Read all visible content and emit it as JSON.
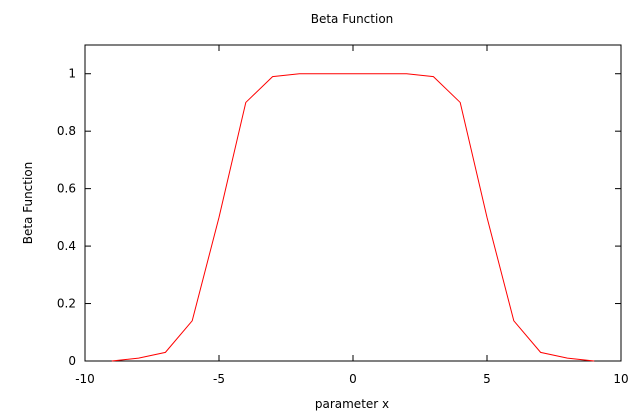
{
  "chart_data": {
    "type": "line",
    "title": "Beta Function",
    "xlabel": "parameter x",
    "ylabel": "Beta Function",
    "xlim": [
      -10,
      10
    ],
    "ylim": [
      0,
      1.1
    ],
    "grid": false,
    "x_ticks": [
      -10,
      -5,
      0,
      5,
      10
    ],
    "y_ticks": [
      0,
      0.2,
      0.4,
      0.6,
      0.8,
      1
    ],
    "series": [
      {
        "color": "#ff0000",
        "x": [
          -9,
          -8,
          -7,
          -6,
          -5,
          -4,
          -3,
          -2,
          -1,
          0,
          1,
          2,
          3,
          4,
          5,
          6,
          7,
          8,
          9
        ],
        "y": [
          0,
          0.01,
          0.03,
          0.14,
          0.5,
          0.9,
          0.99,
          1,
          1,
          1,
          1,
          1,
          0.99,
          0.9,
          0.5,
          0.14,
          0.03,
          0.01,
          0
        ]
      }
    ]
  }
}
